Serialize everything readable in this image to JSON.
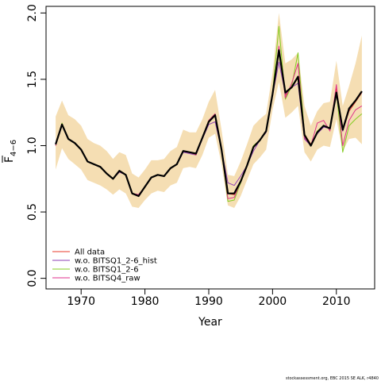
{
  "chart_data": {
    "type": "line",
    "title": "",
    "xlabel": "Year",
    "ylabel_main": "F",
    "ylabel_sub": "4−6",
    "xlim": [
      1964.5,
      2016
    ],
    "ylim": [
      -0.08,
      2.05
    ],
    "x_ticks": [
      1970,
      1980,
      1990,
      2000,
      2010
    ],
    "y_ticks": [
      0.0,
      0.5,
      1.0,
      1.5,
      2.0
    ],
    "y_tick_labels": [
      "0.0",
      "0.5",
      "1.0",
      "1.5",
      "2.0"
    ],
    "band_color": "#f5deb3",
    "x": [
      1966,
      1967,
      1968,
      1969,
      1970,
      1971,
      1972,
      1973,
      1974,
      1975,
      1976,
      1977,
      1978,
      1979,
      1980,
      1981,
      1982,
      1983,
      1984,
      1985,
      1986,
      1987,
      1988,
      1989,
      1990,
      1991,
      1992,
      1993,
      1994,
      1995,
      1996,
      1997,
      1998,
      1999,
      2000,
      2001,
      2002,
      2003,
      2004,
      2005,
      2006,
      2007,
      2008,
      2009,
      2010,
      2011,
      2012,
      2013,
      2014
    ],
    "ci_upper": [
      1.22,
      1.34,
      1.23,
      1.2,
      1.15,
      1.05,
      1.02,
      1.0,
      0.96,
      0.9,
      0.95,
      0.93,
      0.79,
      0.76,
      0.82,
      0.89,
      0.89,
      0.9,
      0.96,
      0.99,
      1.12,
      1.1,
      1.1,
      1.2,
      1.33,
      1.42,
      1.12,
      0.78,
      0.77,
      0.88,
      1.01,
      1.15,
      1.2,
      1.24,
      1.55,
      2.0,
      1.62,
      1.65,
      1.7,
      1.3,
      1.15,
      1.26,
      1.32,
      1.33,
      1.64,
      1.3,
      1.45,
      1.62,
      1.83
    ],
    "ci_lower": [
      0.82,
      0.98,
      0.9,
      0.86,
      0.82,
      0.74,
      0.72,
      0.7,
      0.67,
      0.63,
      0.67,
      0.64,
      0.54,
      0.53,
      0.59,
      0.64,
      0.66,
      0.65,
      0.7,
      0.72,
      0.83,
      0.84,
      0.83,
      0.93,
      1.06,
      1.09,
      0.86,
      0.55,
      0.53,
      0.62,
      0.74,
      0.86,
      0.91,
      0.97,
      1.27,
      1.48,
      1.21,
      1.25,
      1.3,
      0.95,
      0.88,
      0.97,
      1.0,
      0.99,
      1.2,
      0.96,
      1.05,
      1.06,
      1.01
    ],
    "series": [
      {
        "name": "All data",
        "color": "#e8392a",
        "width": 1,
        "values": [
          1.0,
          1.16,
          1.05,
          1.02,
          0.97,
          0.88,
          0.86,
          0.84,
          0.79,
          0.75,
          0.81,
          0.78,
          0.64,
          0.63,
          0.69,
          0.76,
          0.78,
          0.77,
          0.83,
          0.86,
          0.96,
          0.95,
          0.93,
          1.06,
          1.19,
          1.24,
          0.97,
          0.64,
          0.63,
          0.73,
          0.85,
          0.99,
          1.04,
          1.11,
          1.39,
          1.73,
          1.38,
          1.44,
          1.52,
          1.09,
          1.01,
          1.1,
          1.15,
          1.13,
          1.43,
          1.11,
          1.26,
          1.33,
          1.4
        ]
      },
      {
        "name": "w.o. BITSQ1_2-6_hist",
        "color": "#8e3fb5",
        "width": 1,
        "values": [
          1.01,
          1.15,
          1.05,
          1.02,
          0.97,
          0.88,
          0.86,
          0.84,
          0.79,
          0.75,
          0.8,
          0.78,
          0.64,
          0.63,
          0.69,
          0.76,
          0.78,
          0.77,
          0.83,
          0.86,
          0.95,
          0.94,
          0.93,
          1.05,
          1.16,
          1.18,
          0.97,
          0.72,
          0.7,
          0.77,
          0.85,
          0.96,
          1.04,
          1.1,
          1.38,
          1.63,
          1.39,
          1.44,
          1.47,
          1.05,
          1.0,
          1.09,
          1.14,
          1.13,
          1.38,
          1.11,
          1.27,
          1.34,
          1.41
        ]
      },
      {
        "name": "w.o. BITSQ1_2-6",
        "color": "#84cc22",
        "width": 1,
        "values": [
          1.0,
          1.17,
          1.05,
          1.02,
          0.97,
          0.88,
          0.86,
          0.84,
          0.79,
          0.75,
          0.81,
          0.78,
          0.64,
          0.62,
          0.69,
          0.76,
          0.78,
          0.77,
          0.83,
          0.86,
          0.96,
          0.95,
          0.93,
          1.06,
          1.19,
          1.24,
          0.97,
          0.58,
          0.59,
          0.72,
          0.85,
          1.0,
          1.04,
          1.11,
          1.4,
          1.9,
          1.35,
          1.45,
          1.7,
          1.09,
          1.0,
          1.11,
          1.15,
          1.13,
          1.4,
          0.95,
          1.15,
          1.2,
          1.24
        ]
      },
      {
        "name": "w.o. BITSQ4_raw",
        "color": "#e0328c",
        "width": 1,
        "values": [
          1.0,
          1.16,
          1.05,
          1.02,
          0.97,
          0.88,
          0.86,
          0.84,
          0.79,
          0.75,
          0.81,
          0.78,
          0.64,
          0.63,
          0.69,
          0.76,
          0.78,
          0.77,
          0.83,
          0.86,
          0.96,
          0.95,
          0.93,
          1.06,
          1.19,
          1.24,
          0.97,
          0.6,
          0.61,
          0.73,
          0.85,
          0.99,
          1.04,
          1.11,
          1.39,
          1.75,
          1.36,
          1.47,
          1.62,
          1.06,
          1.0,
          1.17,
          1.19,
          1.11,
          1.46,
          1.0,
          1.19,
          1.27,
          1.3
        ]
      },
      {
        "name": "",
        "color": "#000000",
        "width": 2.2,
        "values": [
          1.01,
          1.16,
          1.05,
          1.02,
          0.97,
          0.88,
          0.86,
          0.84,
          0.79,
          0.75,
          0.81,
          0.78,
          0.64,
          0.62,
          0.69,
          0.76,
          0.78,
          0.77,
          0.83,
          0.86,
          0.96,
          0.95,
          0.94,
          1.06,
          1.18,
          1.23,
          0.97,
          0.64,
          0.64,
          0.73,
          0.85,
          0.99,
          1.04,
          1.11,
          1.39,
          1.72,
          1.4,
          1.44,
          1.52,
          1.08,
          1.0,
          1.1,
          1.15,
          1.13,
          1.4,
          1.12,
          1.28,
          1.34,
          1.41
        ]
      }
    ],
    "legend": {
      "placement": "bottom-left",
      "entries": [
        {
          "label": "All data",
          "color": "#e8392a"
        },
        {
          "label": "w.o. BITSQ1_2-6_hist",
          "color": "#8e3fb5"
        },
        {
          "label": "w.o. BITSQ1_2-6",
          "color": "#84cc22"
        },
        {
          "label": "w.o. BITSQ4_raw",
          "color": "#e0328c"
        }
      ]
    },
    "credit": "stockassessment.org, EBC 2015 SE ALK, r4840"
  }
}
